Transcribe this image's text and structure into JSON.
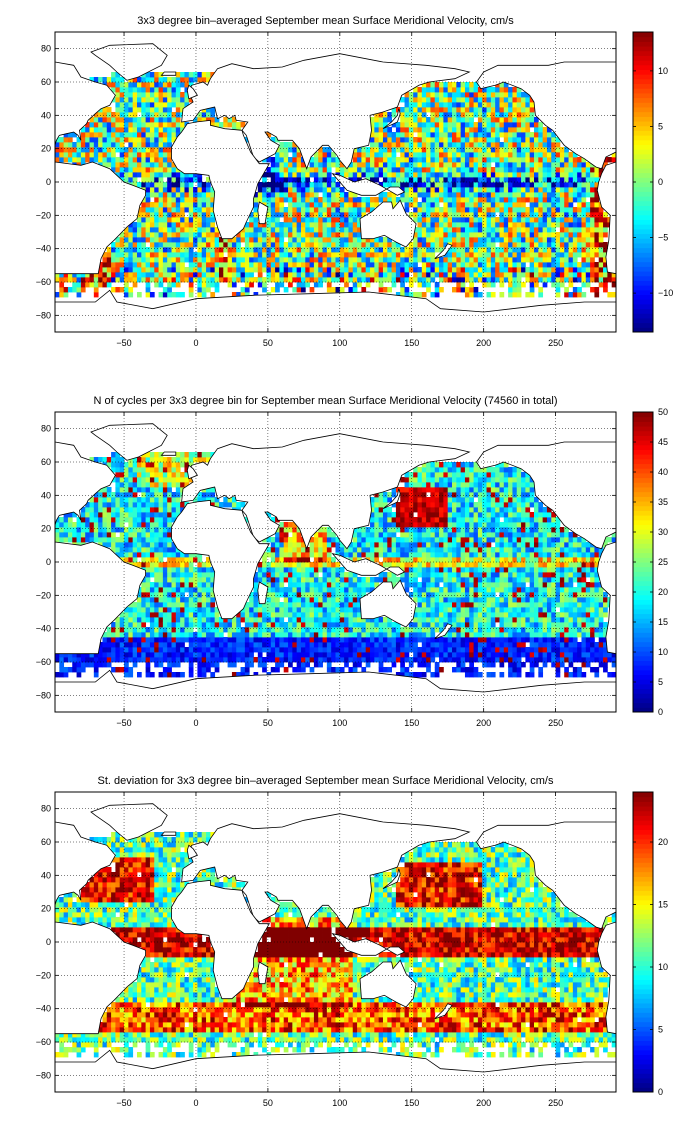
{
  "chart_data": [
    {
      "type": "heatmap",
      "title": "3x3 degree bin–averaged September mean Surface Meridional Velocity, cm/s",
      "xlabel": "",
      "ylabel": "",
      "xlim": [
        -98,
        292
      ],
      "ylim": [
        -90,
        90
      ],
      "x_ticks": [
        -50,
        0,
        50,
        100,
        150,
        200,
        250
      ],
      "y_ticks": [
        -80,
        -60,
        -40,
        -20,
        0,
        20,
        40,
        60,
        80
      ],
      "grid": true,
      "colormap": "jet",
      "colorbar": {
        "min": -13.5,
        "max": 13.5,
        "ticks": [
          -10,
          -5,
          0,
          5,
          10
        ]
      },
      "bin_size_deg": 3,
      "field": "velocity"
    },
    {
      "type": "heatmap",
      "title": "N of cycles per 3x3 degree bin for September mean Surface Meridional Velocity (74560 in total)",
      "xlabel": "",
      "ylabel": "",
      "xlim": [
        -98,
        292
      ],
      "ylim": [
        -90,
        90
      ],
      "x_ticks": [
        -50,
        0,
        50,
        100,
        150,
        200,
        250
      ],
      "y_ticks": [
        -80,
        -60,
        -40,
        -20,
        0,
        20,
        40,
        60,
        80
      ],
      "grid": true,
      "colormap": "jet",
      "colorbar": {
        "min": 0,
        "max": 50,
        "ticks": [
          0,
          5,
          10,
          15,
          20,
          25,
          30,
          35,
          40,
          45,
          50
        ]
      },
      "bin_size_deg": 3,
      "field": "count"
    },
    {
      "type": "heatmap",
      "title": "St. deviation for 3x3 degree bin–averaged September mean Surface Meridional Velocity, cm/s",
      "xlabel": "",
      "ylabel": "",
      "xlim": [
        -98,
        292
      ],
      "ylim": [
        -90,
        90
      ],
      "x_ticks": [
        -50,
        0,
        50,
        100,
        150,
        200,
        250
      ],
      "y_ticks": [
        -80,
        -60,
        -40,
        -20,
        0,
        20,
        40,
        60,
        80
      ],
      "grid": true,
      "colormap": "jet",
      "colorbar": {
        "min": 0,
        "max": 24,
        "ticks": [
          0,
          5,
          10,
          15,
          20
        ]
      },
      "bin_size_deg": 3,
      "field": "stdev"
    }
  ]
}
